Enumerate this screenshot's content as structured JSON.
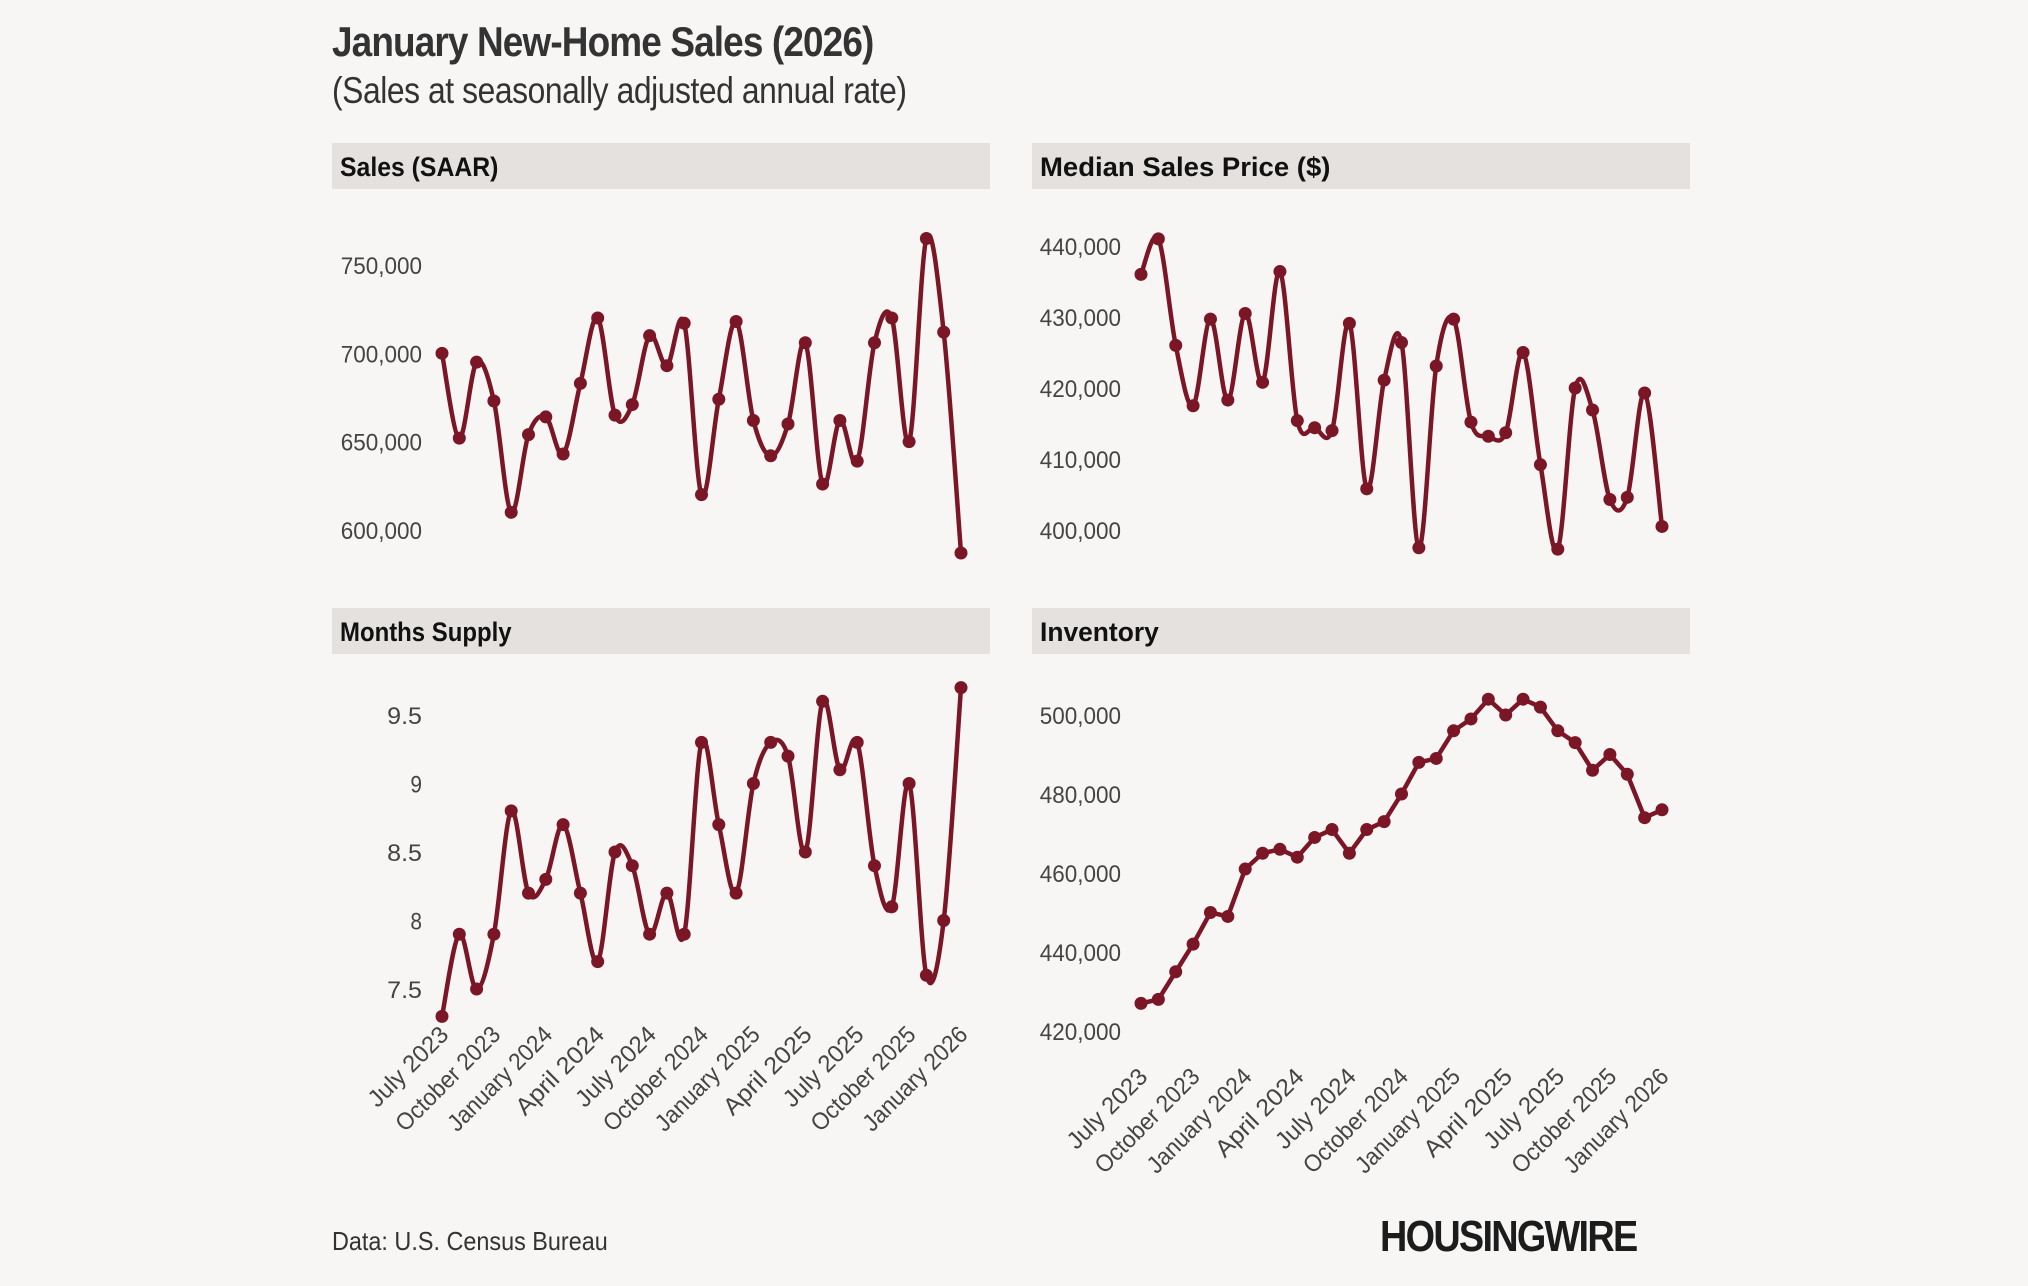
{
  "title": "January New-Home Sales (2026)",
  "subtitle": "(Sales at seasonally adjusted annual rate)",
  "source": "Data: U.S. Census Bureau",
  "logo": "HOUSINGWIRE",
  "colors": {
    "line": "#7b1626",
    "background": "#f8f6f4",
    "panel_header": "#e4e1df"
  },
  "chart_data": [
    {
      "type": "line",
      "title": "Sales (SAAR)",
      "smoothed": true,
      "x_tick_labels": [],
      "y_ticks": [
        600000,
        650000,
        700000,
        750000
      ],
      "y_tick_labels": [
        "600,000",
        "650,000",
        "700,000",
        "750,000"
      ],
      "values": [
        700000,
        652000,
        695000,
        673000,
        610000,
        654000,
        664000,
        643000,
        683000,
        720000,
        665000,
        671000,
        710000,
        693000,
        717000,
        620000,
        674000,
        718000,
        662000,
        642000,
        660000,
        706000,
        626000,
        662000,
        639000,
        706000,
        720000,
        650000,
        765000,
        712000,
        587000
      ]
    },
    {
      "type": "line",
      "title": "Median Sales Price ($)",
      "smoothed": true,
      "x_tick_labels": [],
      "y_ticks": [
        400000,
        410000,
        420000,
        430000,
        440000
      ],
      "y_tick_labels": [
        "400,000",
        "410,000",
        "420,000",
        "430,000",
        "440,000"
      ],
      "values": [
        436000,
        441000,
        426000,
        417500,
        429700,
        418300,
        430500,
        420800,
        436400,
        415400,
        414400,
        414000,
        429100,
        405800,
        421100,
        426400,
        397500,
        423100,
        429700,
        415200,
        413200,
        413700,
        425000,
        409200,
        397300,
        420000,
        416900,
        404300,
        404600,
        419300,
        400500
      ]
    },
    {
      "type": "line",
      "title": "Months Supply",
      "smoothed": true,
      "x_tick_labels": [
        "July 2023",
        "October 2023",
        "January 2024",
        "April 2024",
        "July 2024",
        "October 2024",
        "January 2025",
        "April 2025",
        "July 2025",
        "October 2025",
        "January 2026"
      ],
      "y_ticks": [
        7.5,
        8,
        8.5,
        9,
        9.5
      ],
      "y_tick_labels": [
        "7.5",
        "8",
        "8.5",
        "9",
        "9.5"
      ],
      "values": [
        7.3,
        7.9,
        7.5,
        7.9,
        8.8,
        8.2,
        8.3,
        8.7,
        8.2,
        7.7,
        8.5,
        8.4,
        7.9,
        8.2,
        7.9,
        9.3,
        8.7,
        8.2,
        9.0,
        9.3,
        9.2,
        8.5,
        9.6,
        9.1,
        9.3,
        8.4,
        8.1,
        9.0,
        7.6,
        8.0,
        9.7
      ]
    },
    {
      "type": "line",
      "title": "Inventory",
      "smoothed": false,
      "x_tick_labels": [
        "July 2023",
        "October 2023",
        "January 2024",
        "April 2024",
        "July 2024",
        "October 2024",
        "January 2025",
        "April 2025",
        "July 2025",
        "October 2025",
        "January 2026"
      ],
      "y_ticks": [
        420000,
        440000,
        460000,
        480000,
        500000
      ],
      "y_tick_labels": [
        "420,000",
        "440,000",
        "460,000",
        "480,000",
        "500,000"
      ],
      "values": [
        427000,
        428000,
        435000,
        442000,
        450000,
        449000,
        461000,
        465000,
        466000,
        464000,
        469000,
        471000,
        465000,
        471000,
        473000,
        480000,
        488000,
        489000,
        496000,
        499000,
        504000,
        500000,
        504000,
        502000,
        496000,
        493000,
        486000,
        490000,
        485000,
        474000,
        476000
      ]
    }
  ],
  "x_period": {
    "first": "July 2023",
    "last": "January 2026",
    "frequency": "monthly"
  }
}
